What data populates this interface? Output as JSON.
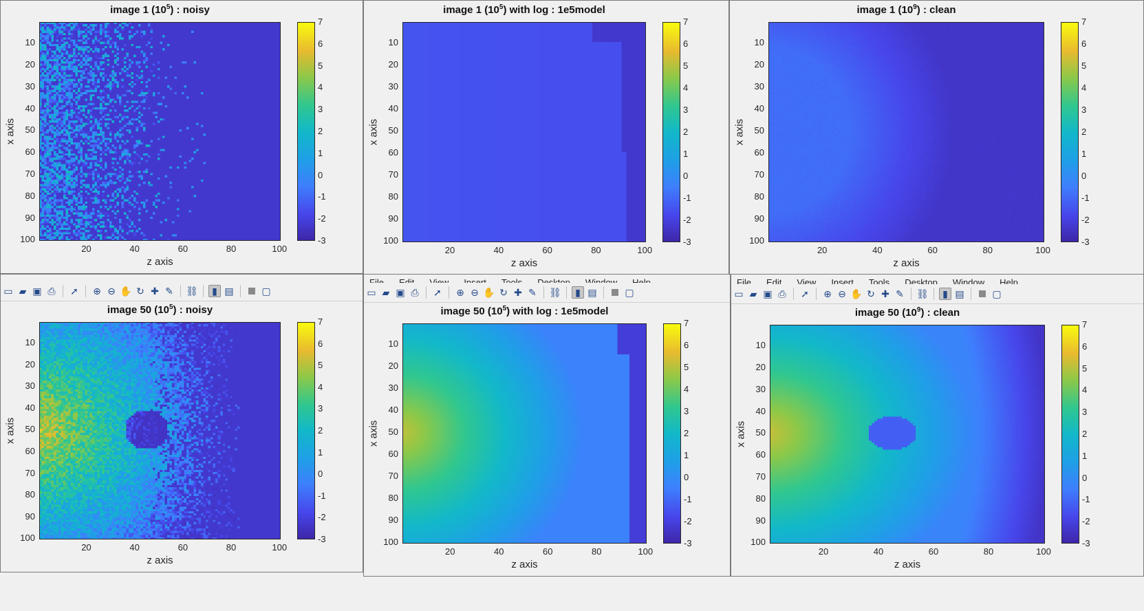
{
  "menu_items": [
    "File",
    "Edit",
    "View",
    "Insert",
    "Tools",
    "Desktop",
    "Window",
    "Help"
  ],
  "toolbar_icons": [
    "new-figure-icon",
    "open-icon",
    "save-icon",
    "print-icon",
    "pointer-icon",
    "zoom-in-icon",
    "zoom-out-icon",
    "pan-icon",
    "rotate-icon",
    "data-cursor-icon",
    "brush-icon",
    "link-icon",
    "colorbar-icon",
    "legend-icon",
    "hide-plot-tools-icon",
    "show-plot-tools-icon"
  ],
  "axes_common": {
    "xlabel": "z axis",
    "ylabel": "x axis",
    "x_ticks": [
      "20",
      "40",
      "60",
      "80",
      "100"
    ],
    "y_ticks": [
      "10",
      "20",
      "30",
      "40",
      "50",
      "60",
      "70",
      "80",
      "90",
      "100"
    ],
    "colorbar_ticks": [
      "7",
      "6",
      "5",
      "4",
      "3",
      "2",
      "1",
      "0",
      "-1",
      "-2",
      "-3"
    ]
  },
  "panels": [
    {
      "title_pre": "image 1 (10",
      "title_sup": "5",
      "title_post": ") : noisy"
    },
    {
      "title_pre": "image 1 (10",
      "title_sup": "5",
      "title_post": ") with log : 1e5model"
    },
    {
      "title_pre": "image 1 (10",
      "title_sup": "9",
      "title_post": ") : clean"
    },
    {
      "title_pre": "image 50 (10",
      "title_sup": "5",
      "title_post": ") : noisy"
    },
    {
      "title_pre": "image 50 (10",
      "title_sup": "5",
      "title_post": ") with log : 1e5model"
    },
    {
      "title_pre": "image 50 (10",
      "title_sup": "9",
      "title_post": ") : clean"
    }
  ],
  "colors": {
    "colormap": [
      "#3e26a8",
      "#4746eb",
      "#3e7ffd",
      "#1f9fe7",
      "#12b8c9",
      "#30c78f",
      "#8dc848",
      "#e8ba2f",
      "#f9fb0e"
    ],
    "window_bg": "#f0f0f0"
  },
  "chart_data": [
    {
      "type": "heatmap",
      "title": "image 1 (10^5) : noisy",
      "xlabel": "z axis",
      "ylabel": "x axis",
      "xlim": [
        1,
        100
      ],
      "ylim": [
        1,
        100
      ],
      "clim": [
        -3,
        7
      ],
      "description": "sparse noisy speckle, values mostly -2 to 2 concentrated at z < 50"
    },
    {
      "type": "heatmap",
      "title": "image 1 (10^5) with log : 1e5model",
      "xlabel": "z axis",
      "ylabel": "x axis",
      "xlim": [
        1,
        100
      ],
      "ylim": [
        1,
        100
      ],
      "clim": [
        -3,
        7
      ],
      "description": "smooth field near -1.5, darker strip at z > 90"
    },
    {
      "type": "heatmap",
      "title": "image 1 (10^9) : clean",
      "xlabel": "z axis",
      "ylabel": "x axis",
      "xlim": [
        1,
        100
      ],
      "ylim": [
        1,
        100
      ],
      "clim": [
        -3,
        7
      ],
      "description": "smooth field about -1, decaying toward -2.5 beyond z 60"
    },
    {
      "type": "heatmap",
      "title": "image 50 (10^5) : noisy",
      "xlabel": "z axis",
      "ylabel": "x axis",
      "xlim": [
        1,
        100
      ],
      "ylim": [
        1,
        100
      ],
      "clim": [
        -3,
        7
      ],
      "description": "source near z 0, x 50 peak about 5, noisy decay, hole at z 45 x 50"
    },
    {
      "type": "heatmap",
      "title": "image 50 (10^5) with log : 1e5model",
      "xlabel": "z axis",
      "ylabel": "x axis",
      "xlim": [
        1,
        100
      ],
      "ylim": [
        1,
        100
      ],
      "clim": [
        -3,
        7
      ],
      "description": "smooth source peak about 5 near z 0 x 50, decaying to about -0.5"
    },
    {
      "type": "heatmap",
      "title": "image 50 (10^9) : clean",
      "xlabel": "z axis",
      "ylabel": "x axis",
      "xlim": [
        1,
        100
      ],
      "ylim": [
        1,
        100
      ],
      "clim": [
        -3,
        7
      ],
      "description": "smooth source peak about 5 near z 0 x 50, absorber dip near z 45 x 50"
    }
  ]
}
